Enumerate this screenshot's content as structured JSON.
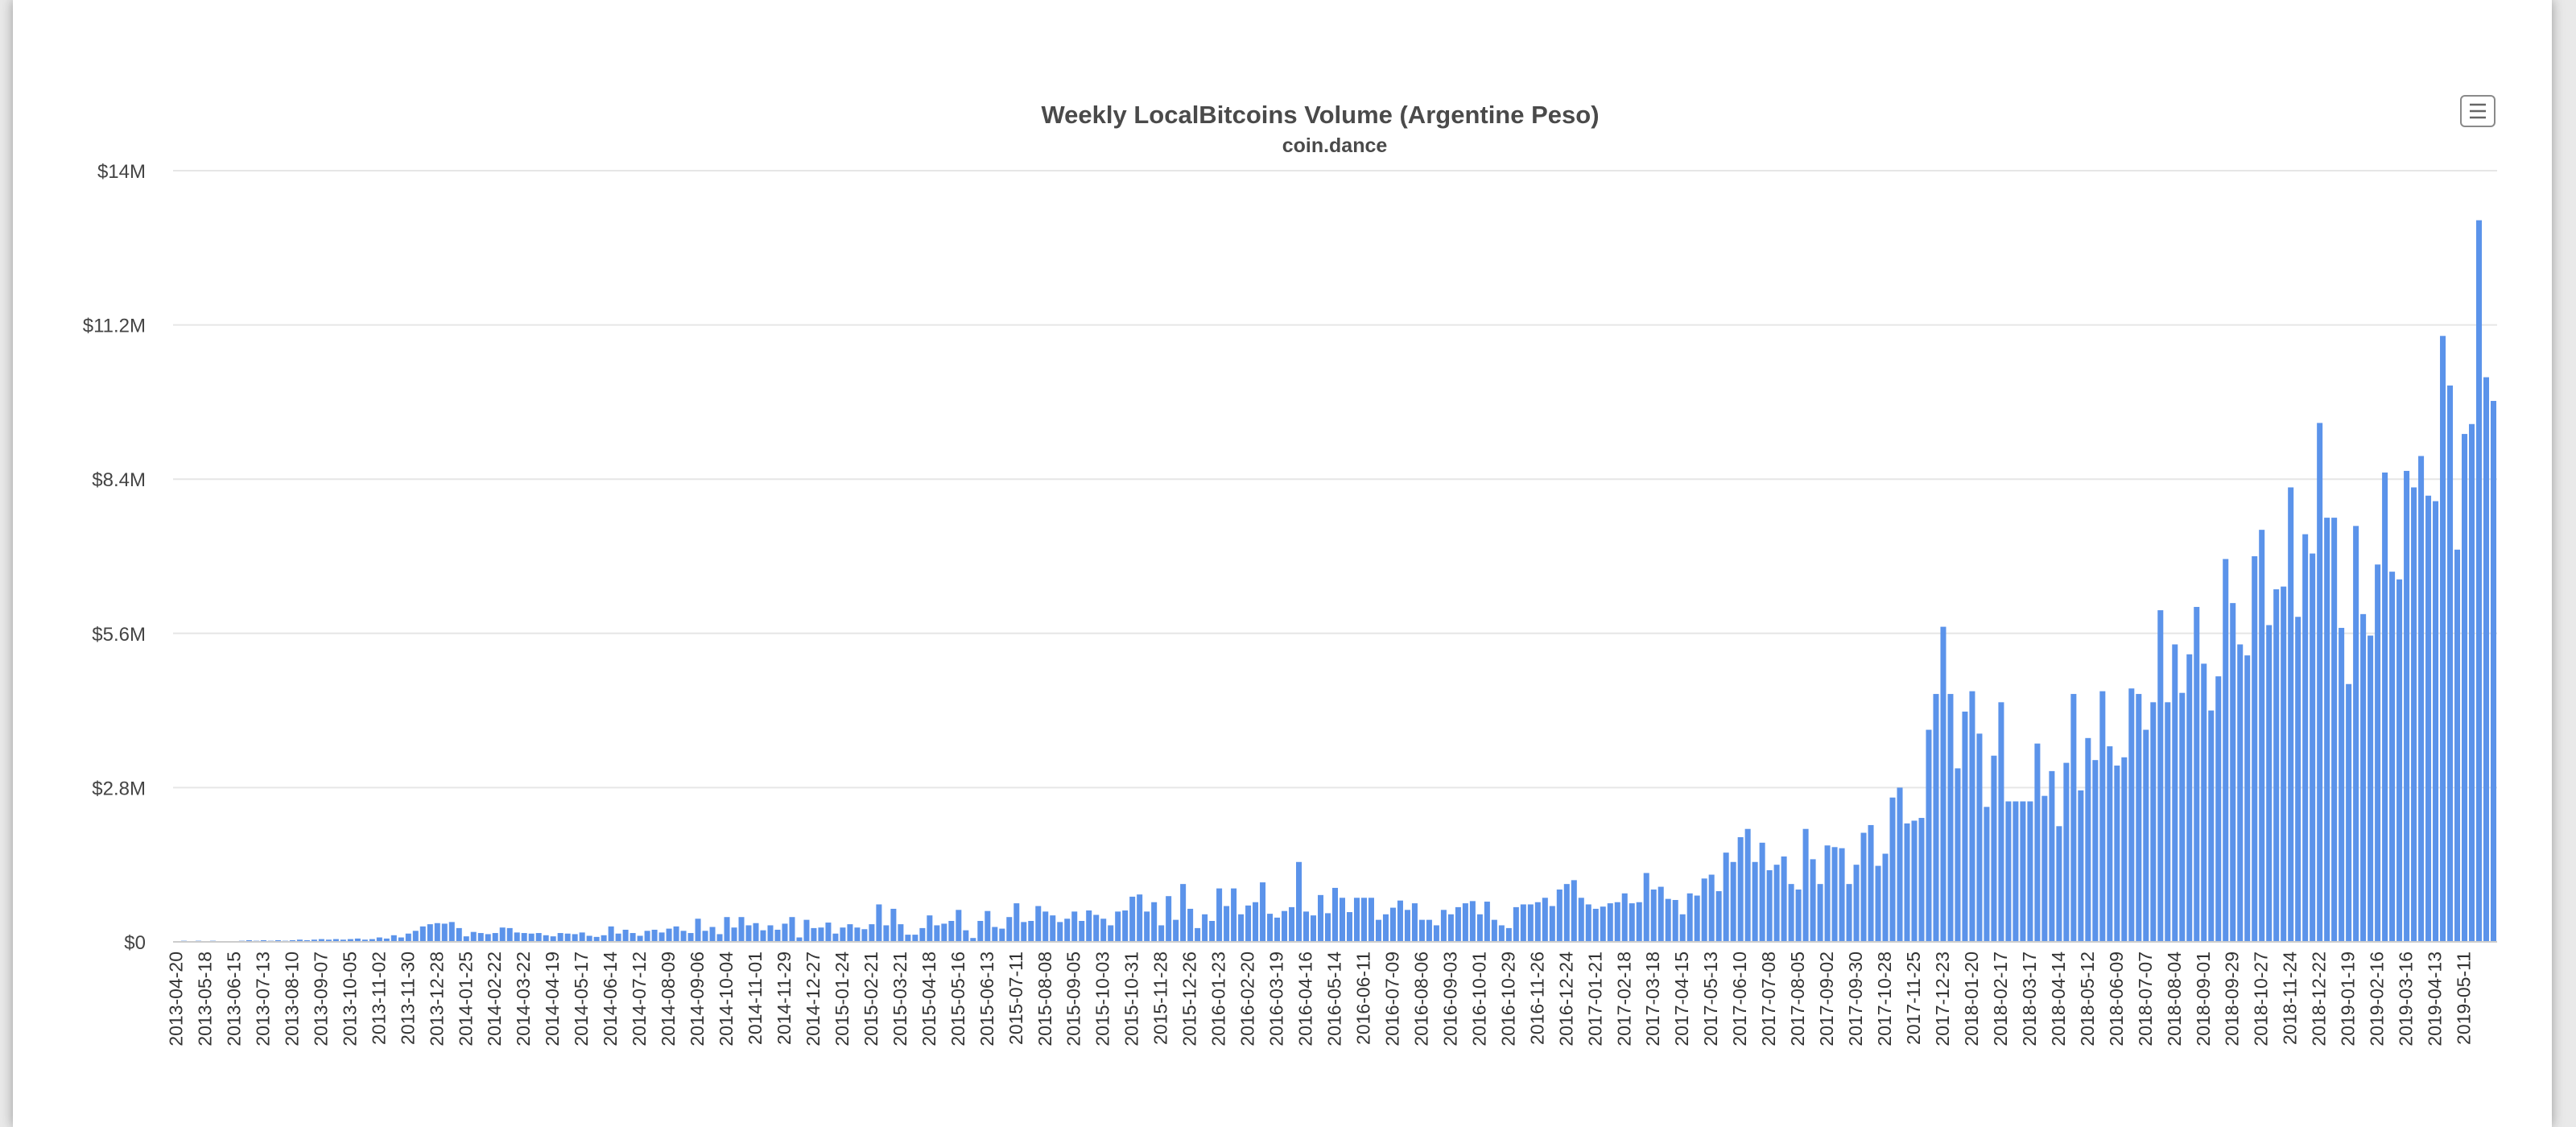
{
  "colors": {
    "bar": "#5b93ea",
    "grid": "#e6e6e6",
    "text": "#4a4a4a"
  },
  "menu": {
    "icon": "hamburger-menu-icon"
  },
  "chart_data": {
    "type": "bar",
    "title": "Weekly LocalBitcoins Volume (Argentine Peso)",
    "subtitle": "coin.dance",
    "y_axis": {
      "min": 0,
      "max": 14000000,
      "ticks": [
        0,
        2800000,
        5600000,
        8400000,
        11200000,
        14000000
      ],
      "tick_labels": [
        "$0",
        "$2.8M",
        "$5.6M",
        "$8.4M",
        "$11.2M",
        "$14M"
      ]
    },
    "grid": true,
    "legend": "none",
    "x_tick_labels": [
      "2013-04-20",
      "2013-05-18",
      "2013-06-15",
      "2013-07-13",
      "2013-08-10",
      "2013-09-07",
      "2013-10-05",
      "2013-11-02",
      "2013-11-30",
      "2013-12-28",
      "2014-01-25",
      "2014-02-22",
      "2014-03-22",
      "2014-04-19",
      "2014-05-17",
      "2014-06-14",
      "2014-07-12",
      "2014-08-09",
      "2014-09-06",
      "2014-10-04",
      "2014-11-01",
      "2014-11-29",
      "2014-12-27",
      "2015-01-24",
      "2015-02-21",
      "2015-03-21",
      "2015-04-18",
      "2015-05-16",
      "2015-06-13",
      "2015-07-11",
      "2015-08-08",
      "2015-09-05",
      "2015-10-03",
      "2015-10-31",
      "2015-11-28",
      "2015-12-26",
      "2016-01-23",
      "2016-02-20",
      "2016-03-19",
      "2016-04-16",
      "2016-05-14",
      "2016-06-11",
      "2016-07-09",
      "2016-08-06",
      "2016-09-03",
      "2016-10-01",
      "2016-10-29",
      "2016-11-26",
      "2016-12-24",
      "2017-01-21",
      "2017-02-18",
      "2017-03-18",
      "2017-04-15",
      "2017-05-13",
      "2017-06-10",
      "2017-07-08",
      "2017-08-05",
      "2017-09-02",
      "2017-09-30",
      "2017-10-28",
      "2017-11-25",
      "2017-12-23",
      "2018-01-20",
      "2018-02-17",
      "2018-03-17",
      "2018-04-14",
      "2018-05-12",
      "2018-06-09",
      "2018-07-07",
      "2018-08-04",
      "2018-09-01",
      "2018-09-29",
      "2018-10-27",
      "2018-11-24",
      "2018-12-22",
      "2019-01-19",
      "2019-02-16",
      "2019-03-16",
      "2019-04-13",
      "2019-05-11"
    ],
    "first_week": "2013-04-20",
    "values_millions": [
      0.01,
      0.02,
      0.01,
      0.02,
      0.01,
      0.02,
      0.01,
      0.0,
      0.01,
      0.02,
      0.03,
      0.02,
      0.03,
      0.02,
      0.03,
      0.02,
      0.03,
      0.04,
      0.03,
      0.04,
      0.05,
      0.04,
      0.05,
      0.04,
      0.05,
      0.06,
      0.04,
      0.05,
      0.08,
      0.06,
      0.12,
      0.08,
      0.15,
      0.2,
      0.28,
      0.32,
      0.34,
      0.33,
      0.36,
      0.25,
      0.1,
      0.18,
      0.16,
      0.14,
      0.16,
      0.26,
      0.25,
      0.17,
      0.16,
      0.15,
      0.16,
      0.12,
      0.1,
      0.16,
      0.15,
      0.14,
      0.17,
      0.11,
      0.09,
      0.12,
      0.28,
      0.15,
      0.22,
      0.16,
      0.11,
      0.2,
      0.22,
      0.17,
      0.24,
      0.28,
      0.2,
      0.16,
      0.42,
      0.2,
      0.27,
      0.14,
      0.45,
      0.26,
      0.45,
      0.3,
      0.34,
      0.21,
      0.3,
      0.22,
      0.33,
      0.45,
      0.08,
      0.4,
      0.25,
      0.26,
      0.35,
      0.15,
      0.26,
      0.32,
      0.26,
      0.23,
      0.32,
      0.68,
      0.3,
      0.6,
      0.32,
      0.13,
      0.13,
      0.25,
      0.48,
      0.3,
      0.33,
      0.38,
      0.58,
      0.21,
      0.07,
      0.38,
      0.56,
      0.27,
      0.24,
      0.45,
      0.7,
      0.36,
      0.38,
      0.65,
      0.55,
      0.48,
      0.36,
      0.42,
      0.55,
      0.38,
      0.57,
      0.49,
      0.42,
      0.3,
      0.55,
      0.57,
      0.82,
      0.86,
      0.55,
      0.72,
      0.3,
      0.83,
      0.4,
      1.05,
      0.6,
      0.25,
      0.5,
      0.38,
      0.97,
      0.65,
      0.97,
      0.5,
      0.66,
      0.72,
      1.08,
      0.51,
      0.44,
      0.56,
      0.63,
      1.45,
      0.55,
      0.48,
      0.85,
      0.52,
      0.98,
      0.8,
      0.54,
      0.8,
      0.8,
      0.8,
      0.4,
      0.5,
      0.62,
      0.75,
      0.58,
      0.7,
      0.4,
      0.4,
      0.3,
      0.58,
      0.5,
      0.63,
      0.7,
      0.74,
      0.5,
      0.73,
      0.4,
      0.3,
      0.25,
      0.63,
      0.68,
      0.68,
      0.72,
      0.8,
      0.65,
      0.95,
      1.05,
      1.12,
      0.8,
      0.68,
      0.6,
      0.64,
      0.7,
      0.72,
      0.88,
      0.7,
      0.72,
      1.25,
      0.95,
      1.0,
      0.78,
      0.76,
      0.5,
      0.88,
      0.84,
      1.15,
      1.22,
      0.92,
      1.62,
      1.45,
      1.9,
      2.05,
      1.45,
      1.8,
      1.3,
      1.4,
      1.55,
      1.05,
      0.95,
      2.05,
      1.5,
      1.05,
      1.75,
      1.72,
      1.7,
      1.05,
      1.4,
      1.98,
      2.12,
      1.38,
      1.6,
      2.62,
      2.8,
      2.15,
      2.2,
      2.25,
      3.85,
      4.5,
      5.72,
      4.5,
      3.15,
      4.18,
      4.55,
      3.78,
      2.45,
      3.38,
      4.35,
      2.55,
      2.55,
      2.55,
      2.55,
      3.6,
      2.65,
      3.1,
      2.1,
      3.25,
      4.5,
      2.75,
      3.7,
      3.3,
      4.55,
      3.55,
      3.2,
      3.35,
      4.6,
      4.5,
      3.85,
      4.35,
      6.02,
      4.35,
      5.4,
      4.52,
      5.22,
      6.08,
      5.05,
      4.2,
      4.82,
      6.95,
      6.15,
      5.4,
      5.2,
      7.0,
      7.48,
      5.75,
      6.4,
      6.45,
      8.25,
      5.9,
      7.4,
      7.05,
      9.42,
      7.7,
      7.7,
      5.7,
      4.68,
      7.55,
      5.95,
      5.56,
      6.85,
      8.52,
      6.72,
      6.58,
      8.55,
      8.25,
      8.82,
      8.1,
      8.0,
      11.0,
      10.1,
      7.12,
      9.22,
      9.4,
      13.1,
      10.25,
      9.82
    ]
  }
}
